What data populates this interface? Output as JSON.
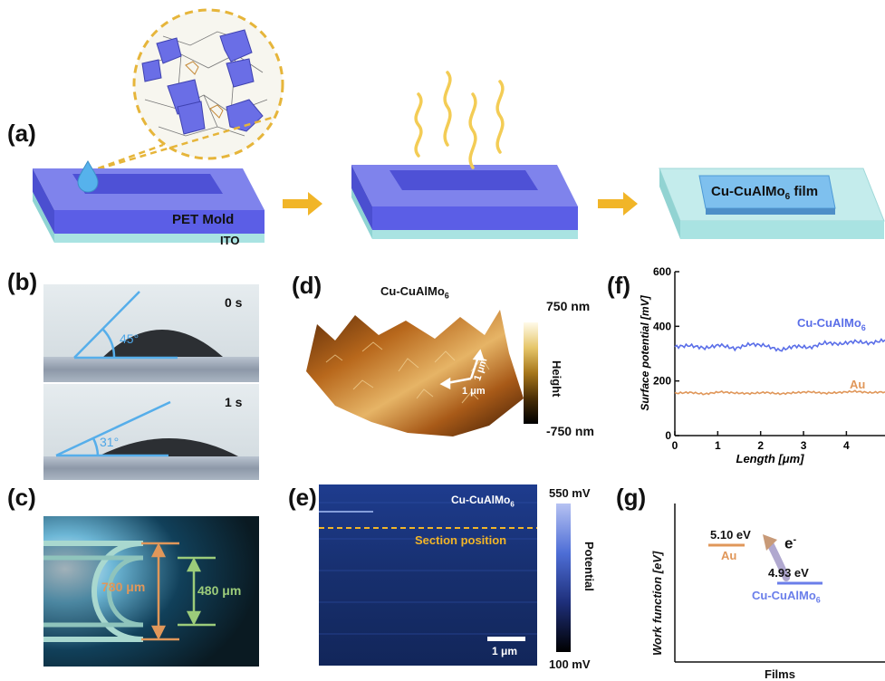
{
  "panels": {
    "a": {
      "label": "(a)",
      "mold_label": "PET Mold",
      "substrate_label": "ITO",
      "film_label_main": "Cu-CuAlMo",
      "film_label_sub": "6",
      "film_label_suffix": " film"
    },
    "b": {
      "label": "(b)",
      "frames": [
        {
          "time": "0 s",
          "angle": "45°"
        },
        {
          "time": "1 s",
          "angle": "31°"
        }
      ]
    },
    "c": {
      "label": "(c)",
      "outer": "780 μm",
      "inner": "480 μm"
    },
    "d": {
      "label": "(d)",
      "title_main": "Cu-CuAlMo",
      "title_sub": "6",
      "scale_top": "750 nm",
      "scale_bottom": "-750 nm",
      "scale_label": "Height",
      "dim1": "1 μm",
      "dim2": "1 μm"
    },
    "e": {
      "label": "(e)",
      "sample_main": "Cu-CuAlMo",
      "sample_sub": "6",
      "section": "Section position",
      "scalebar": "1 μm",
      "scale_top": "550 mV",
      "scale_bottom": "100 mV",
      "scale_label": "Potential"
    },
    "g": {
      "label": "(g)",
      "ylabel": "Work function [eV]",
      "xlabel": "Films",
      "au_value": "5.10 eV",
      "au_name": "Au",
      "cu_value": "4.93 eV",
      "cu_name_main": "Cu-CuAlMo",
      "cu_name_sub": "6",
      "electron": "e",
      "electron_sup": "-"
    }
  },
  "chart_data": {
    "type": "line",
    "panel": "(f)",
    "xlabel": "Length [μm]",
    "ylabel": "Surface potential [mV]",
    "xlim": [
      0,
      4.9
    ],
    "ylim": [
      0,
      600
    ],
    "xticks": [
      "0",
      "1",
      "2",
      "3",
      "4"
    ],
    "yticks": [
      "0",
      "200",
      "400",
      "600"
    ],
    "series": [
      {
        "name": "Cu-CuAlMo6",
        "label_main": "Cu-CuAlMo",
        "label_sub": "6",
        "color": "#5a6ee8",
        "x": [
          0,
          0.35,
          0.7,
          1.05,
          1.4,
          1.75,
          2.1,
          2.45,
          2.8,
          3.15,
          3.5,
          3.85,
          4.2,
          4.55,
          4.9
        ],
        "values": [
          325,
          330,
          320,
          332,
          318,
          335,
          330,
          312,
          328,
          322,
          340,
          335,
          345,
          338,
          350
        ]
      },
      {
        "name": "Au",
        "label_main": "Au",
        "label_sub": "",
        "color": "#e0975a",
        "x": [
          0,
          0.35,
          0.7,
          1.05,
          1.4,
          1.75,
          2.1,
          2.45,
          2.8,
          3.15,
          3.5,
          3.85,
          4.2,
          4.55,
          4.9
        ],
        "values": [
          155,
          158,
          152,
          160,
          156,
          154,
          158,
          153,
          157,
          160,
          155,
          158,
          162,
          157,
          160
        ]
      }
    ]
  },
  "colors": {
    "mold": "#5b5ee6",
    "mold_light": "#8e92ee",
    "ito": "#a9e3e2",
    "arrow": "#f1b528",
    "accent_blue": "#4ea6e6",
    "orange": "#e0975a",
    "green": "#9ccc7a"
  }
}
